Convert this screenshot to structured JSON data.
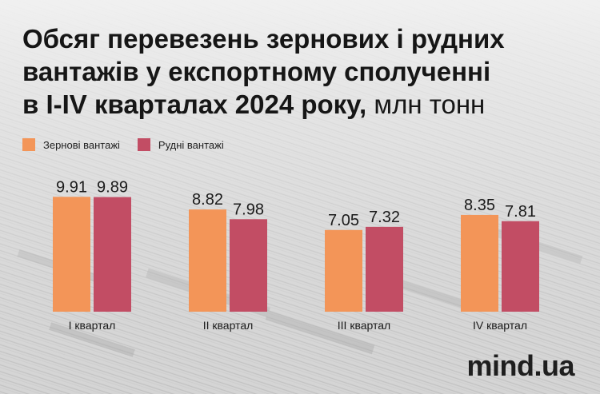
{
  "title_lines": [
    "Обсяг перевезень зернових і рудних",
    "вантажів у експортному сполученні",
    "в I-IV кварталах 2024 року,"
  ],
  "title_unit": "млн тонн",
  "brand": "mind.ua",
  "colors": {
    "grain": "#f39558",
    "ore": "#c24d64",
    "text": "#161616"
  },
  "chart_data": {
    "type": "bar",
    "categories": [
      "I квартал",
      "II квартал",
      "III квартал",
      "IV квартал"
    ],
    "series": [
      {
        "name": "Зернові вантажі",
        "values": [
          9.91,
          8.82,
          7.05,
          8.35
        ],
        "labels": [
          "9.91",
          "8.82",
          "7.05",
          "8.35"
        ]
      },
      {
        "name": "Рудні вантажі",
        "values": [
          9.89,
          7.98,
          7.32,
          7.81
        ],
        "labels": [
          "9.89",
          "7.98",
          "7.32",
          "7.81"
        ]
      }
    ],
    "title": "Обсяг перевезень зернових і рудних вантажів у експортному сполученні в I-IV кварталах 2024 року, млн тонн",
    "legend": "top-left",
    "grid": false
  }
}
